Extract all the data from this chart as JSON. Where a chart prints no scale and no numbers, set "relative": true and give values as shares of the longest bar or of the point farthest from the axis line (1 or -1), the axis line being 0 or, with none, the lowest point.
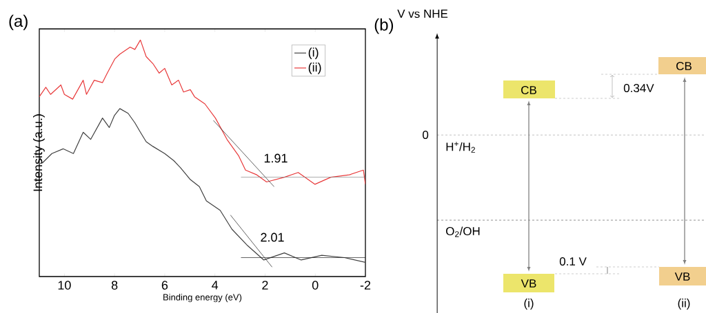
{
  "chart_data": [
    {
      "type": "line",
      "title": "(a)",
      "xlabel": "Binding energy (eV)",
      "ylabel": "Intensity (a.u.)",
      "relative": true,
      "xlim": [
        11,
        -2
      ],
      "xticks": [
        10,
        8,
        6,
        4,
        2,
        0,
        -2
      ],
      "tick_labels": "x",
      "legend": "top right",
      "grid": false,
      "marker": "none",
      "line_style": "solid",
      "series": [
        {
          "name": "(i)",
          "color": "#404040",
          "x": [
            11.0,
            10.88,
            10.5,
            10.05,
            9.64,
            9.25,
            8.95,
            8.48,
            8.21,
            8.01,
            7.79,
            7.46,
            7.19,
            6.97,
            6.74,
            6.47,
            6.0,
            5.64,
            5.37,
            4.98,
            4.62,
            4.34,
            3.79,
            3.32,
            2.69,
            2.05,
            1.23,
            0.56,
            -0.26,
            -1.17,
            -2.0
          ],
          "values": [
            0.51,
            0.48,
            0.52,
            0.54,
            0.52,
            0.61,
            0.58,
            0.67,
            0.63,
            0.68,
            0.71,
            0.69,
            0.65,
            0.61,
            0.57,
            0.55,
            0.52,
            0.49,
            0.46,
            0.41,
            0.38,
            0.32,
            0.28,
            0.2,
            0.13,
            0.07,
            0.1,
            0.07,
            0.09,
            0.08,
            0.06
          ]
        },
        {
          "name": "(ii)",
          "color": "#e8393a",
          "x": [
            11.0,
            10.74,
            10.55,
            10.14,
            10.0,
            9.67,
            9.25,
            9.12,
            8.81,
            8.48,
            8.29,
            7.99,
            7.79,
            7.38,
            7.19,
            6.97,
            6.74,
            6.47,
            6.22,
            6.0,
            5.72,
            5.45,
            5.25,
            4.98,
            4.81,
            4.4,
            3.98,
            3.52,
            3.05,
            2.78,
            2.33,
            1.94,
            1.23,
            0.68,
            0.01,
            -0.62,
            -1.36,
            -1.92,
            -2.0
          ],
          "values": [
            0.76,
            0.8,
            0.77,
            0.81,
            0.77,
            0.75,
            0.83,
            0.77,
            0.83,
            0.82,
            0.86,
            0.92,
            0.94,
            0.97,
            0.96,
            1.0,
            0.93,
            0.9,
            0.86,
            0.88,
            0.81,
            0.83,
            0.78,
            0.79,
            0.76,
            0.73,
            0.67,
            0.58,
            0.51,
            0.45,
            0.43,
            0.4,
            0.42,
            0.44,
            0.39,
            0.42,
            0.43,
            0.45,
            0.39
          ]
        },
        {
          "type": "line",
          "color": "#202020",
          "x": [
            4.06,
            1.64
          ],
          "values": [
            0.66,
            0.38
          ]
        },
        {
          "type": "line",
          "color": "#808080",
          "x": [
            2.96,
            -2.0
          ],
          "values": [
            0.42,
            0.42
          ]
        },
        {
          "type": "line",
          "color": "#202020",
          "x": [
            3.38,
            1.72
          ],
          "values": [
            0.26,
            0.04
          ]
        },
        {
          "type": "line",
          "color": "#202020",
          "x": [
            2.96,
            -2.0
          ],
          "values": [
            0.08,
            0.08
          ]
        }
      ],
      "annotations": [
        "1.91",
        "2.01"
      ]
    },
    {
      "type": "other",
      "title": "(b)",
      "ylabel": "V vs NHE",
      "colors": [
        "#ece56b",
        "#f2cf8e"
      ],
      "annotations": [
        "0",
        "H$^{+}$/H$_{2}$",
        "O$_{2}$/OH",
        "CB",
        "CB",
        "VB",
        "VB",
        "(i)",
        "(ii)",
        "0.34V",
        "0.1 V"
      ]
    }
  ]
}
